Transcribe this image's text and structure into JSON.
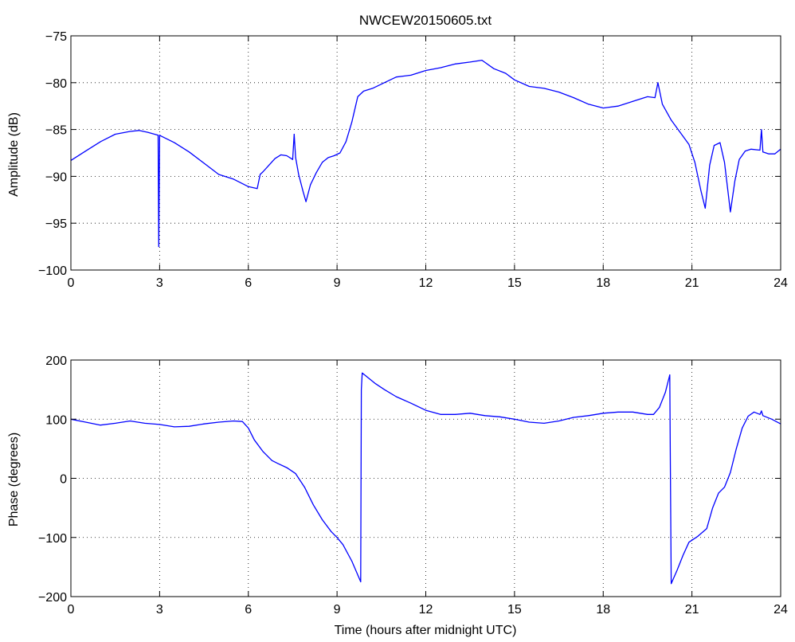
{
  "chart_data": [
    {
      "type": "line",
      "title": "NWCEW20150605.txt",
      "xlabel": "",
      "ylabel": "Amplitude (dB)",
      "xlim": [
        0,
        24
      ],
      "ylim": [
        -100,
        -75
      ],
      "xticks": [
        "0",
        "3",
        "6",
        "9",
        "12",
        "15",
        "18",
        "21",
        "24"
      ],
      "yticks": [
        "-75",
        "-80",
        "-85",
        "-90",
        "-95",
        "-100"
      ],
      "grid": true,
      "color": "#0000ff",
      "series": [
        {
          "x": [
            0,
            0.5,
            1.0,
            1.5,
            2.0,
            2.3,
            2.6,
            2.95,
            2.97,
            3.0,
            3.05,
            3.5,
            4.0,
            4.5,
            5.0,
            5.5,
            6.0,
            6.3,
            6.4,
            6.5,
            6.7,
            6.9,
            7.1,
            7.3,
            7.5,
            7.55,
            7.6,
            7.7,
            7.85,
            7.95,
            8.1,
            8.3,
            8.5,
            8.7,
            8.9,
            9.1,
            9.3,
            9.5,
            9.7,
            9.9,
            10.2,
            10.6,
            11.0,
            11.5,
            12.0,
            12.5,
            13.0,
            13.5,
            13.9,
            14.3,
            14.7,
            15.0,
            15.5,
            16.0,
            16.5,
            17.0,
            17.5,
            18.0,
            18.5,
            19.0,
            19.5,
            19.75,
            19.85,
            20.0,
            20.3,
            20.6,
            20.9,
            21.1,
            21.3,
            21.45,
            21.6,
            21.75,
            21.95,
            22.1,
            22.3,
            22.45,
            22.6,
            22.8,
            23.0,
            23.3,
            23.35,
            23.4,
            23.6,
            23.8,
            24.0
          ],
          "y": [
            -88.3,
            -87.3,
            -86.3,
            -85.5,
            -85.2,
            -85.1,
            -85.3,
            -85.6,
            -97.5,
            -85.6,
            -85.7,
            -86.4,
            -87.4,
            -88.6,
            -89.8,
            -90.3,
            -91.1,
            -91.3,
            -89.8,
            -89.5,
            -88.8,
            -88.1,
            -87.7,
            -87.8,
            -88.2,
            -85.5,
            -88.0,
            -89.8,
            -91.6,
            -92.7,
            -90.9,
            -89.6,
            -88.5,
            -88.0,
            -87.8,
            -87.5,
            -86.3,
            -84.2,
            -81.5,
            -80.9,
            -80.6,
            -80.0,
            -79.4,
            -79.2,
            -78.7,
            -78.4,
            -78.0,
            -77.8,
            -77.6,
            -78.5,
            -79.0,
            -79.7,
            -80.4,
            -80.6,
            -81.0,
            -81.6,
            -82.3,
            -82.7,
            -82.5,
            -82.0,
            -81.5,
            -81.6,
            -80.0,
            -82.3,
            -84.0,
            -85.3,
            -86.6,
            -88.5,
            -91.5,
            -93.4,
            -88.8,
            -86.7,
            -86.4,
            -88.5,
            -93.8,
            -90.5,
            -88.2,
            -87.3,
            -87.1,
            -87.2,
            -85.0,
            -87.4,
            -87.6,
            -87.6,
            -87.1
          ]
        }
      ]
    },
    {
      "type": "line",
      "title": "",
      "xlabel": "Time (hours after midnight UTC)",
      "ylabel": "Phase (degrees)",
      "xlim": [
        0,
        24
      ],
      "ylim": [
        -200,
        200
      ],
      "xticks": [
        "0",
        "3",
        "6",
        "9",
        "12",
        "15",
        "18",
        "21",
        "24"
      ],
      "yticks": [
        "200",
        "100",
        "0",
        "-100",
        "-200"
      ],
      "grid": true,
      "color": "#0000ff",
      "series": [
        {
          "x": [
            0,
            0.5,
            1.0,
            1.5,
            2.0,
            2.5,
            3.0,
            3.5,
            4.0,
            4.5,
            5.0,
            5.5,
            5.8,
            6.0,
            6.2,
            6.5,
            6.8,
            7.0,
            7.3,
            7.6,
            7.9,
            8.2,
            8.5,
            8.8,
            9.0,
            9.2,
            9.5,
            9.8,
            9.82,
            9.85,
            10.0,
            10.3,
            10.6,
            11.0,
            11.5,
            12.0,
            12.5,
            13.0,
            13.5,
            14.0,
            14.5,
            15.0,
            15.5,
            16.0,
            16.5,
            17.0,
            17.5,
            18.0,
            18.5,
            19.0,
            19.5,
            19.7,
            19.9,
            20.1,
            20.25,
            20.27,
            20.3,
            20.5,
            20.7,
            20.9,
            21.2,
            21.5,
            21.7,
            21.9,
            22.1,
            22.3,
            22.5,
            22.7,
            22.9,
            23.1,
            23.3,
            23.35,
            23.4,
            23.7,
            24.0
          ],
          "y": [
            100,
            95,
            90,
            93,
            97,
            93,
            91,
            87,
            88,
            92,
            95,
            97,
            96,
            85,
            65,
            45,
            30,
            25,
            18,
            8,
            -15,
            -45,
            -70,
            -90,
            -100,
            -112,
            -140,
            -175,
            150,
            178,
            172,
            160,
            150,
            138,
            127,
            115,
            108,
            108,
            110,
            106,
            104,
            100,
            95,
            93,
            97,
            103,
            106,
            110,
            112,
            112,
            108,
            108,
            120,
            145,
            175,
            30,
            -178,
            -155,
            -130,
            -108,
            -98,
            -85,
            -50,
            -25,
            -15,
            10,
            50,
            85,
            105,
            112,
            108,
            114,
            106,
            100,
            92
          ]
        }
      ]
    }
  ]
}
